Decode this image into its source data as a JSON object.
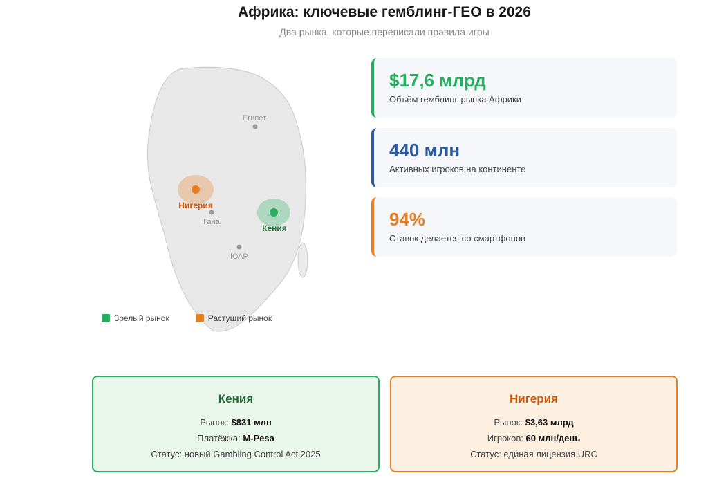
{
  "header": {
    "title": "Африка: ключевые гемблинг-ГЕО в 2026",
    "subtitle": "Два рынка, которые переписали правила игры"
  },
  "map": {
    "labels": {
      "egypt": "Египет",
      "nigeria": "Нигерия",
      "ghana": "Гана",
      "kenya": "Кения",
      "south_africa": "ЮАР"
    },
    "colors": {
      "mature": "#27ae60",
      "growing": "#e67e22"
    }
  },
  "legend": {
    "mature": "Зрелый рынок",
    "growing": "Растущий рынок"
  },
  "stats": [
    {
      "value": "$17,6 млрд",
      "label": "Объём гемблинг-рынка Африки",
      "color": "#27ae60"
    },
    {
      "value": "440 млн",
      "label": "Активных игроков на континенте",
      "color": "#2c5aa0"
    },
    {
      "value": "94%",
      "label": "Ставок делается со смартфонов",
      "color": "#e67e22"
    }
  ],
  "cards": {
    "kenya": {
      "name": "Кения",
      "row1_label": "Рынок: ",
      "row1_value": "$831 млн",
      "row2_label": "Платёжка: ",
      "row2_value": "M-Pesa",
      "row3": "Статус: новый Gambling Control Act 2025"
    },
    "nigeria": {
      "name": "Нигерия",
      "row1_label": "Рынок: ",
      "row1_value": "$3,63 млрд",
      "row2_label": "Игроков: ",
      "row2_value": "60 млн/день",
      "row3": "Статус: единая лицензия URC"
    }
  }
}
